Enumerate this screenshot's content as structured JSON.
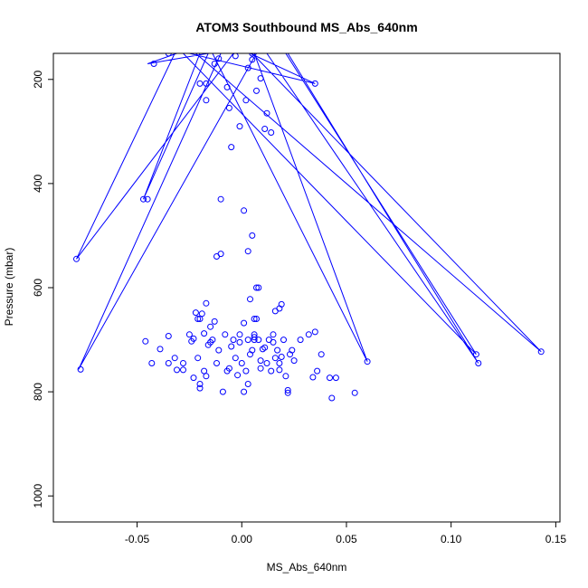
{
  "chart_data": {
    "type": "line",
    "title": "ATOM3 Southbound MS_Abs_640nm",
    "xlabel": "MS_Abs_640nm",
    "ylabel": "Pressure (mbar)",
    "xlim": [
      -0.09,
      0.152
    ],
    "ylim": [
      1050,
      150
    ],
    "y_reversed": true,
    "x_ticks": [
      -0.05,
      0.0,
      0.05,
      0.1,
      0.15
    ],
    "x_tick_labels": [
      "-0.05",
      "0.00",
      "0.05",
      "0.10",
      "0.15"
    ],
    "y_ticks": [
      200,
      400,
      600,
      800,
      1000
    ],
    "y_tick_labels": [
      "200",
      "400",
      "600",
      "800",
      "1000"
    ],
    "grid": false,
    "series_color": "#0000ff",
    "marker": "open-circle",
    "series": [
      {
        "x": [
          -0.031,
          -0.045,
          -0.016,
          -0.047,
          -0.02,
          -0.004,
          -0.079,
          -0.032,
          0.004,
          0.035,
          -0.025,
          0.007,
          -0.078,
          -0.01,
          0.02,
          0.016,
          -0.035,
          0.011,
          -0.012,
          -0.017,
          0.038,
          -0.02,
          0.03,
          -0.005,
          0.005,
          0.143,
          -0.022,
          0.021,
          0.112,
          -0.028,
          0.018,
          0.006,
          0.06,
          -0.014,
          -0.023,
          0.012,
          0.113,
          0.022,
          -0.006,
          -0.03,
          0.024,
          0.0,
          0.036,
          0.016,
          -0.002,
          -0.015,
          0.008,
          0.033,
          0.003,
          -0.019,
          0.013,
          0.042,
          -0.011,
          0.001,
          0.045,
          -0.036,
          0.026,
          -0.008,
          0.016,
          -0.018,
          0.005,
          -0.035,
          0.017,
          0.022,
          -0.025,
          0.043,
          -0.02,
          -0.042,
          0.002,
          0.054,
          0.001,
          0.009,
          -0.01,
          0.022,
          -0.014,
          0.036
        ],
        "y": [
          150,
          170,
          150,
          430,
          150,
          150,
          545,
          150,
          150,
          208,
          150,
          150,
          757,
          150,
          150,
          150,
          150,
          150,
          150,
          150,
          150,
          150,
          150,
          150,
          150,
          723,
          150,
          150,
          728,
          150,
          150,
          150,
          742,
          150,
          150,
          150,
          745,
          150,
          150,
          150,
          150,
          150,
          150,
          150,
          150,
          150,
          150,
          150,
          150,
          150,
          150,
          150,
          150,
          150,
          150,
          150,
          150,
          150,
          150,
          150,
          150,
          150,
          150,
          150,
          150,
          150,
          150,
          150,
          150,
          150,
          150,
          150,
          150,
          150,
          150,
          150
        ]
      }
    ],
    "points": [
      [
        -0.079,
        545
      ],
      [
        -0.047,
        430
      ],
      [
        -0.077,
        757
      ],
      [
        -0.046,
        703
      ],
      [
        -0.043,
        745
      ],
      [
        -0.039,
        718
      ],
      [
        -0.035,
        693
      ],
      [
        -0.035,
        745
      ],
      [
        -0.032,
        735
      ],
      [
        -0.031,
        758
      ],
      [
        -0.028,
        745
      ],
      [
        -0.025,
        690
      ],
      [
        -0.024,
        703
      ],
      [
        -0.023,
        773
      ],
      [
        -0.022,
        648
      ],
      [
        -0.021,
        660
      ],
      [
        -0.021,
        735
      ],
      [
        -0.02,
        785
      ],
      [
        -0.02,
        793
      ],
      [
        -0.019,
        650
      ],
      [
        -0.018,
        688
      ],
      [
        -0.018,
        760
      ],
      [
        -0.017,
        770
      ],
      [
        -0.016,
        710
      ],
      [
        -0.015,
        675
      ],
      [
        -0.014,
        700
      ],
      [
        -0.013,
        665
      ],
      [
        -0.012,
        745
      ],
      [
        -0.011,
        720
      ],
      [
        -0.01,
        535
      ],
      [
        -0.01,
        430
      ],
      [
        -0.009,
        800
      ],
      [
        -0.008,
        690
      ],
      [
        -0.007,
        760
      ],
      [
        -0.006,
        755
      ],
      [
        -0.005,
        713
      ],
      [
        -0.004,
        700
      ],
      [
        -0.003,
        735
      ],
      [
        -0.002,
        768
      ],
      [
        -0.001,
        690
      ],
      [
        0.0,
        745
      ],
      [
        0.001,
        668
      ],
      [
        0.001,
        800
      ],
      [
        0.002,
        760
      ],
      [
        0.003,
        700
      ],
      [
        0.003,
        785
      ],
      [
        0.004,
        728
      ],
      [
        0.005,
        720
      ],
      [
        0.006,
        690
      ],
      [
        0.006,
        700
      ],
      [
        0.007,
        600
      ],
      [
        0.007,
        660
      ],
      [
        0.008,
        700
      ],
      [
        0.009,
        740
      ],
      [
        0.01,
        718
      ],
      [
        0.011,
        715
      ],
      [
        0.012,
        745
      ],
      [
        0.013,
        700
      ],
      [
        0.014,
        760
      ],
      [
        0.015,
        690
      ],
      [
        0.016,
        735
      ],
      [
        0.017,
        720
      ],
      [
        0.018,
        745
      ],
      [
        0.019,
        733
      ],
      [
        0.02,
        700
      ],
      [
        0.021,
        770
      ],
      [
        0.022,
        797
      ],
      [
        0.022,
        802
      ],
      [
        0.023,
        728
      ],
      [
        0.024,
        720
      ],
      [
        0.025,
        740
      ],
      [
        0.028,
        700
      ],
      [
        0.032,
        690
      ],
      [
        0.034,
        772
      ],
      [
        0.035,
        685
      ],
      [
        0.036,
        760
      ],
      [
        0.038,
        728
      ],
      [
        0.042,
        773
      ],
      [
        0.043,
        812
      ],
      [
        0.045,
        773
      ],
      [
        0.054,
        802
      ],
      [
        0.06,
        742
      ],
      [
        0.112,
        728
      ],
      [
        0.113,
        745
      ],
      [
        0.143,
        723
      ],
      [
        -0.045,
        430
      ],
      [
        -0.005,
        330
      ],
      [
        0.005,
        500
      ],
      [
        0.008,
        600
      ],
      [
        0.011,
        295
      ],
      [
        -0.012,
        540
      ],
      [
        0.003,
        530
      ],
      [
        0.001,
        452
      ],
      [
        0.002,
        240
      ],
      [
        -0.017,
        240
      ],
      [
        -0.02,
        208
      ],
      [
        -0.017,
        208
      ],
      [
        -0.007,
        215
      ],
      [
        0.007,
        222
      ],
      [
        0.009,
        198
      ],
      [
        -0.013,
        170
      ],
      [
        0.003,
        178
      ],
      [
        0.005,
        162
      ],
      [
        -0.003,
        155
      ],
      [
        0.005,
        150
      ],
      [
        -0.035,
        150
      ],
      [
        -0.042,
        170
      ],
      [
        0.035,
        208
      ],
      [
        -0.011,
        160
      ],
      [
        0.012,
        265
      ],
      [
        -0.006,
        255
      ],
      [
        0.014,
        302
      ],
      [
        -0.001,
        290
      ],
      [
        0.016,
        645
      ],
      [
        0.019,
        632
      ],
      [
        0.018,
        640
      ],
      [
        -0.017,
        630
      ],
      [
        0.004,
        622
      ],
      [
        -0.02,
        660
      ],
      [
        0.006,
        660
      ],
      [
        0.006,
        695
      ],
      [
        0.015,
        705
      ],
      [
        -0.023,
        698
      ],
      [
        -0.001,
        705
      ],
      [
        -0.015,
        705
      ],
      [
        0.009,
        755
      ],
      [
        0.018,
        758
      ],
      [
        -0.028,
        758
      ]
    ]
  }
}
